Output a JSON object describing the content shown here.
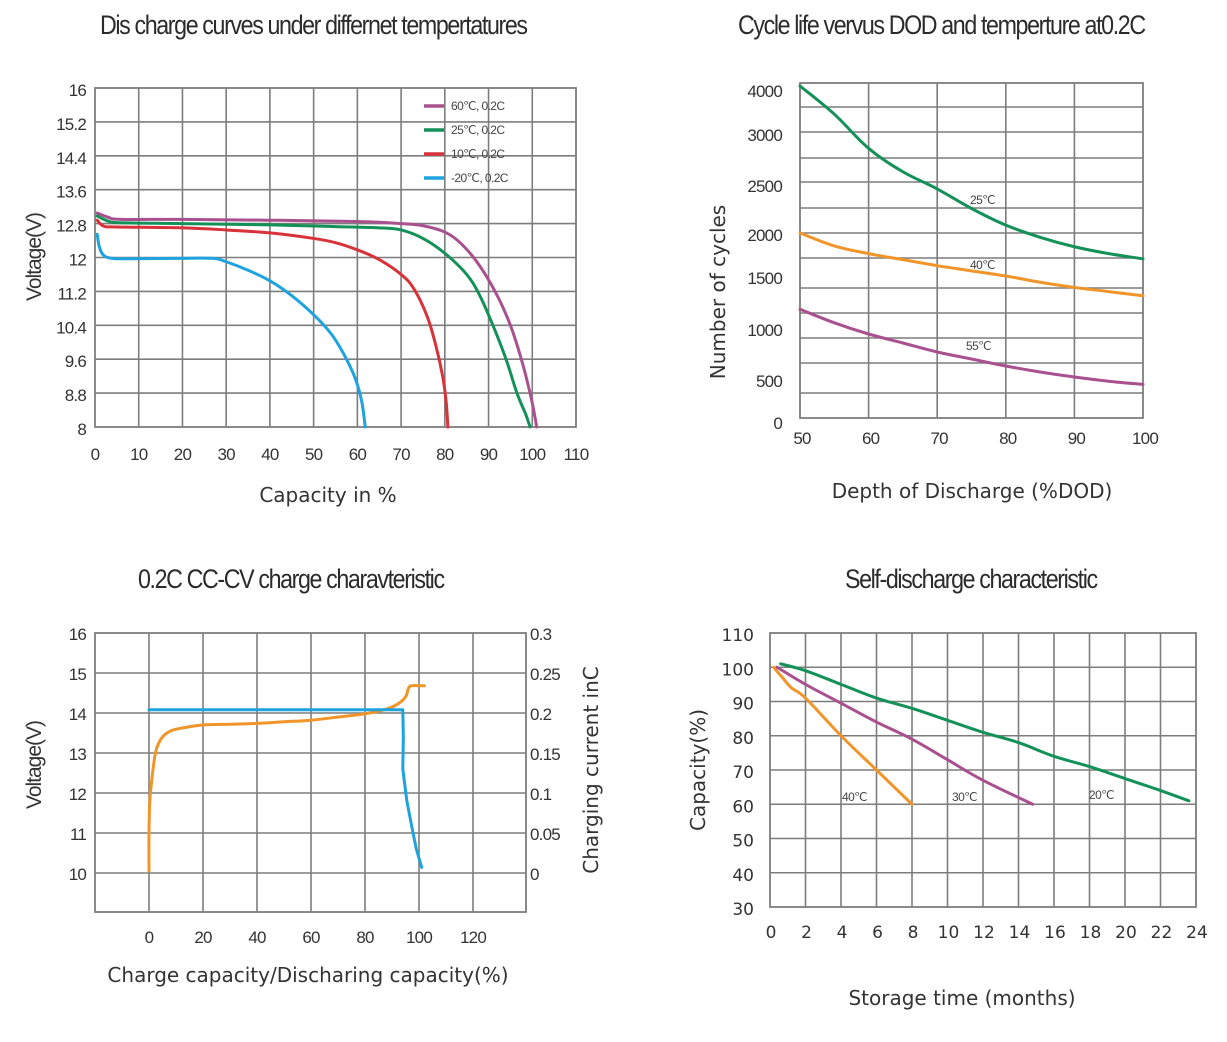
{
  "colors": {
    "magenta": "#a9508f",
    "green": "#139158",
    "red": "#d8323a",
    "blue": "#1ea3de",
    "orange": "#f0952a",
    "grid": "#7d7d7d"
  },
  "chart_data": [
    {
      "id": "discharge",
      "type": "line",
      "title": "Dis charge curves under differnet tempertatures",
      "xlabel": "Capacity in %",
      "ylabel": "Voltage(V)",
      "xlim": [
        0,
        110
      ],
      "ylim": [
        8,
        16
      ],
      "x_ticks": [
        "0",
        "10",
        "20",
        "30",
        "40",
        "50",
        "60",
        "70",
        "80",
        "90",
        "100",
        "110"
      ],
      "y_ticks": [
        "16",
        "15.2",
        "14.4",
        "13.6",
        "12.8",
        "12",
        "11.2",
        "10.4",
        "9.6",
        "8.8",
        "8"
      ],
      "grid": true,
      "legend_position": "top-right",
      "series": [
        {
          "name": "60℃, 0.2C",
          "color": "magenta",
          "points": [
            [
              0.5,
              13.05
            ],
            [
              3,
              12.95
            ],
            [
              6,
              12.9
            ],
            [
              20,
              12.9
            ],
            [
              40,
              12.88
            ],
            [
              60,
              12.85
            ],
            [
              70,
              12.8
            ],
            [
              75,
              12.75
            ],
            [
              80,
              12.6
            ],
            [
              84,
              12.3
            ],
            [
              88,
              11.8
            ],
            [
              92,
              11.1
            ],
            [
              95,
              10.4
            ],
            [
              97.5,
              9.6
            ],
            [
              99.5,
              8.8
            ],
            [
              100.5,
              8.3
            ],
            [
              101,
              8.0
            ]
          ]
        },
        {
          "name": "25℃, 0.2C",
          "color": "green",
          "points": [
            [
              0.5,
              12.98
            ],
            [
              3,
              12.86
            ],
            [
              6,
              12.82
            ],
            [
              20,
              12.8
            ],
            [
              40,
              12.77
            ],
            [
              55,
              12.73
            ],
            [
              65,
              12.7
            ],
            [
              70,
              12.65
            ],
            [
              75,
              12.45
            ],
            [
              80,
              12.1
            ],
            [
              85,
              11.6
            ],
            [
              88,
              11.1
            ],
            [
              91,
              10.4
            ],
            [
              94,
              9.6
            ],
            [
              96.5,
              8.8
            ],
            [
              98.5,
              8.3
            ],
            [
              99.5,
              8.0
            ]
          ]
        },
        {
          "name": "10℃, 0.2C",
          "color": "red",
          "points": [
            [
              0.5,
              12.88
            ],
            [
              2,
              12.74
            ],
            [
              5,
              12.72
            ],
            [
              20,
              12.7
            ],
            [
              30,
              12.65
            ],
            [
              40,
              12.58
            ],
            [
              50,
              12.45
            ],
            [
              55,
              12.35
            ],
            [
              60,
              12.18
            ],
            [
              65,
              11.95
            ],
            [
              70,
              11.6
            ],
            [
              73,
              11.25
            ],
            [
              76,
              10.6
            ],
            [
              78,
              9.9
            ],
            [
              79.5,
              9.2
            ],
            [
              80.3,
              8.6
            ],
            [
              80.7,
              8.0
            ]
          ]
        },
        {
          "name": "-20℃, 0.2C",
          "color": "blue",
          "points": [
            [
              0.5,
              12.55
            ],
            [
              1,
              12.25
            ],
            [
              2,
              12.05
            ],
            [
              4,
              11.98
            ],
            [
              8,
              11.97
            ],
            [
              20,
              11.98
            ],
            [
              27,
              11.98
            ],
            [
              30,
              11.9
            ],
            [
              35,
              11.7
            ],
            [
              40,
              11.45
            ],
            [
              45,
              11.1
            ],
            [
              50,
              10.65
            ],
            [
              54,
              10.2
            ],
            [
              57,
              9.7
            ],
            [
              59.5,
              9.15
            ],
            [
              61,
              8.6
            ],
            [
              61.8,
              8.0
            ]
          ]
        }
      ]
    },
    {
      "id": "cycle_life",
      "type": "line",
      "title": "Cycle life vervus DOD and temperture at0.2C",
      "xlabel": "Depth of Discharge (%DOD)",
      "ylabel": "Number of cycles",
      "xlim": [
        50,
        100
      ],
      "ylim": [
        0,
        4000
      ],
      "x_ticks": [
        "50",
        "60",
        "70",
        "80",
        "90",
        "100"
      ],
      "y_ticks": [
        "4000",
        "3000",
        "2500",
        "2000",
        "1500",
        "1000",
        "500",
        "0"
      ],
      "grid": true,
      "annotations": [
        "25℃",
        "40℃",
        "55℃"
      ],
      "series": [
        {
          "name": "25℃",
          "color": "green",
          "points": [
            [
              50,
              4000
            ],
            [
              55,
              3400
            ],
            [
              60,
              2850
            ],
            [
              65,
              2620
            ],
            [
              70,
              2450
            ],
            [
              75,
              2250
            ],
            [
              80,
              2080
            ],
            [
              85,
              1950
            ],
            [
              90,
              1840
            ],
            [
              95,
              1760
            ],
            [
              100,
              1700
            ]
          ]
        },
        {
          "name": "40℃",
          "color": "orange",
          "points": [
            [
              50,
              2000
            ],
            [
              55,
              1850
            ],
            [
              60,
              1760
            ],
            [
              65,
              1690
            ],
            [
              70,
              1620
            ],
            [
              75,
              1560
            ],
            [
              80,
              1500
            ],
            [
              85,
              1440
            ],
            [
              90,
              1390
            ],
            [
              95,
              1350
            ],
            [
              100,
              1310
            ]
          ]
        },
        {
          "name": "55℃",
          "color": "magenta",
          "points": [
            [
              50,
              1180
            ],
            [
              55,
              1050
            ],
            [
              60,
              940
            ],
            [
              65,
              850
            ],
            [
              70,
              760
            ],
            [
              75,
              690
            ],
            [
              80,
              620
            ],
            [
              85,
              560
            ],
            [
              90,
              510
            ],
            [
              95,
              460
            ],
            [
              100,
              420
            ]
          ]
        }
      ]
    },
    {
      "id": "ccvc",
      "type": "line",
      "title": "0.2C CC-CV charge charavteristic",
      "xlabel": "Charge capacity/Discharing capacity(%)",
      "ylabel": "Voltage(V)",
      "ylabel_right": "Charging current inC",
      "xlim": [
        -20,
        140
      ],
      "ylim": [
        9,
        16
      ],
      "ylim_right": [
        -0.05,
        0.3
      ],
      "x_ticks": [
        "0",
        "20",
        "40",
        "60",
        "80",
        "100",
        "120"
      ],
      "y_ticks": [
        "16",
        "15",
        "14",
        "13",
        "12",
        "11",
        "10"
      ],
      "y_ticks_right": [
        "0.3",
        "0.25",
        "0.2",
        "0.15",
        "0.1",
        "0.05",
        "0"
      ],
      "grid": true,
      "series": [
        {
          "name": "Voltage",
          "axis": "left",
          "color": "orange",
          "points": [
            [
              0,
              10.05
            ],
            [
              0,
              11.0
            ],
            [
              0.3,
              11.8
            ],
            [
              1,
              12.3
            ],
            [
              2,
              12.85
            ],
            [
              3,
              13.15
            ],
            [
              5,
              13.4
            ],
            [
              8,
              13.55
            ],
            [
              12,
              13.62
            ],
            [
              20,
              13.7
            ],
            [
              30,
              13.72
            ],
            [
              40,
              13.74
            ],
            [
              50,
              13.78
            ],
            [
              60,
              13.82
            ],
            [
              70,
              13.9
            ],
            [
              80,
              13.98
            ],
            [
              88,
              14.1
            ],
            [
              92,
              14.22
            ],
            [
              95,
              14.4
            ],
            [
              96,
              14.6
            ],
            [
              97,
              14.68
            ],
            [
              100,
              14.68
            ],
            [
              102,
              14.68
            ]
          ]
        },
        {
          "name": "Charging current",
          "axis": "right",
          "color": "blue",
          "points": [
            [
              0,
              0.204
            ],
            [
              20,
              0.204
            ],
            [
              40,
              0.204
            ],
            [
              60,
              0.204
            ],
            [
              80,
              0.204
            ],
            [
              94,
              0.204
            ],
            [
              94.2,
              0.17
            ],
            [
              94,
              0.13
            ],
            [
              95.5,
              0.09
            ],
            [
              97.5,
              0.055
            ],
            [
              99,
              0.03
            ],
            [
              101,
              0.007
            ]
          ]
        }
      ]
    },
    {
      "id": "self_discharge",
      "type": "line",
      "title": "Self-discharge characteristic",
      "xlabel": "Storage time (months)",
      "ylabel": "Capacity(%)",
      "xlim": [
        0,
        24
      ],
      "ylim": [
        30,
        110
      ],
      "x_ticks": [
        "0",
        "2",
        "4",
        "6",
        "8",
        "10",
        "12",
        "14",
        "16",
        "18",
        "20",
        "22",
        "24"
      ],
      "y_ticks": [
        "110",
        "100",
        "90",
        "80",
        "70",
        "60",
        "50",
        "40",
        "30"
      ],
      "grid": true,
      "annotations": [
        "40℃",
        "30℃",
        "20℃"
      ],
      "series": [
        {
          "name": "40℃",
          "color": "orange",
          "points": [
            [
              0.2,
              100
            ],
            [
              0.7,
              97
            ],
            [
              1.2,
              94
            ],
            [
              2,
              91
            ],
            [
              4,
              80
            ],
            [
              6,
              70
            ],
            [
              8,
              60
            ]
          ]
        },
        {
          "name": "30℃",
          "color": "magenta",
          "points": [
            [
              0.4,
              100
            ],
            [
              2,
              95
            ],
            [
              4,
              89.5
            ],
            [
              6,
              84
            ],
            [
              8,
              79
            ],
            [
              10,
              73
            ],
            [
              12,
              67
            ],
            [
              14.8,
              60
            ]
          ]
        },
        {
          "name": "20℃",
          "color": "green",
          "points": [
            [
              0.6,
              101
            ],
            [
              2,
              99
            ],
            [
              4,
              95
            ],
            [
              6,
              91
            ],
            [
              8,
              88
            ],
            [
              10,
              84.5
            ],
            [
              12,
              81
            ],
            [
              14,
              78
            ],
            [
              16,
              74
            ],
            [
              18,
              71
            ],
            [
              20,
              67.5
            ],
            [
              22,
              64
            ],
            [
              23.6,
              61
            ]
          ]
        }
      ]
    }
  ]
}
